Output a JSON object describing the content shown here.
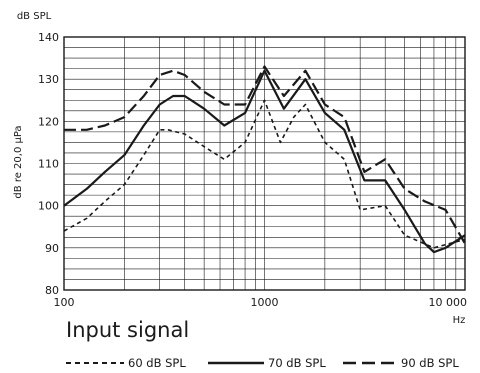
{
  "chart_data": {
    "type": "line",
    "title": "",
    "ylabel_top": "dB SPL",
    "ylabel": "dB re 20,0 µPa",
    "xunit": "Hz",
    "xscale": "log",
    "xlim": [
      100,
      10000
    ],
    "ylim": [
      80,
      140
    ],
    "y_ticks": [
      "80",
      "90",
      "100",
      "110",
      "120",
      "130",
      "140"
    ],
    "x_ticks": [
      {
        "value": 100,
        "label": "100"
      },
      {
        "value": 1000,
        "label": "1000"
      },
      {
        "value": 10000,
        "label": "10 000"
      }
    ],
    "grid": "log-decade-minor",
    "legend_title": "Input signal",
    "series": [
      {
        "name": "60 dB SPL",
        "dash": "short",
        "x": [
          100,
          130,
          160,
          200,
          250,
          300,
          330,
          400,
          500,
          630,
          800,
          1000,
          1200,
          1400,
          1600,
          2000,
          2500,
          3000,
          4000,
          5000,
          7000,
          10000
        ],
        "y": [
          94,
          97,
          101,
          105,
          112,
          118,
          118,
          117,
          114,
          111,
          115,
          125,
          115,
          121,
          124,
          115,
          111,
          99,
          100,
          93,
          90,
          92
        ]
      },
      {
        "name": "70 dB SPL",
        "dash": "solid",
        "x": [
          100,
          130,
          160,
          200,
          250,
          300,
          350,
          400,
          500,
          630,
          800,
          1000,
          1250,
          1600,
          2000,
          2500,
          3150,
          4000,
          5000,
          6300,
          7000,
          8000,
          10000
        ],
        "y": [
          100,
          104,
          108,
          112,
          119,
          124,
          126,
          126,
          123,
          119,
          122,
          132,
          123,
          130,
          122,
          118,
          106,
          106,
          99,
          91,
          89,
          90,
          93
        ]
      },
      {
        "name": "90 dB SPL",
        "dash": "long",
        "x": [
          100,
          130,
          160,
          200,
          250,
          300,
          350,
          400,
          500,
          630,
          800,
          1000,
          1250,
          1600,
          2000,
          2500,
          3150,
          4000,
          5000,
          6300,
          8000,
          10000
        ],
        "y": [
          118,
          118,
          119,
          121,
          126,
          131,
          132,
          131,
          127,
          124,
          124,
          133,
          126,
          132,
          124,
          121,
          108,
          111,
          104,
          101,
          99,
          91
        ]
      }
    ]
  }
}
